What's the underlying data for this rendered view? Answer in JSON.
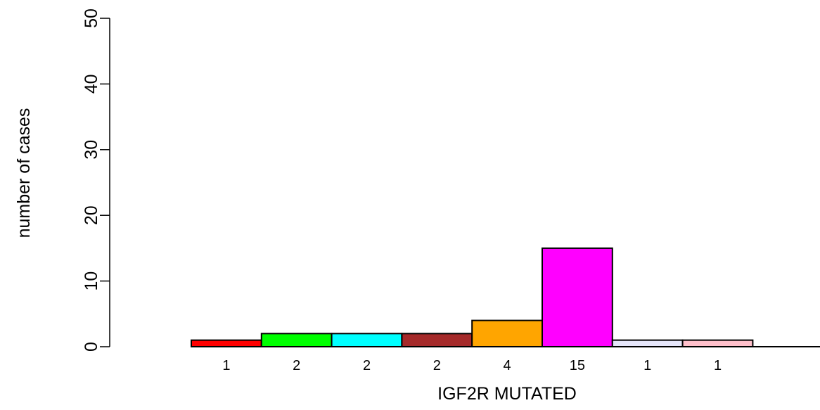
{
  "chart_data": {
    "type": "bar",
    "title": "",
    "xlabel": "IGF2R MUTATED",
    "ylabel": "number of cases",
    "ylim": [
      0,
      50
    ],
    "yticks": [
      0,
      10,
      20,
      30,
      40,
      50
    ],
    "grid": false,
    "legend": "none",
    "values": [
      1,
      2,
      2,
      2,
      4,
      15,
      1,
      1
    ],
    "value_labels": [
      "1",
      "2",
      "2",
      "2",
      "4",
      "15",
      "1",
      "1"
    ],
    "colors": [
      "#ff0000",
      "#00ff00",
      "#00ffff",
      "#a52a2a",
      "#ffa500",
      "#ff00ff",
      "#e6e6fa",
      "#ffc0cb"
    ]
  }
}
